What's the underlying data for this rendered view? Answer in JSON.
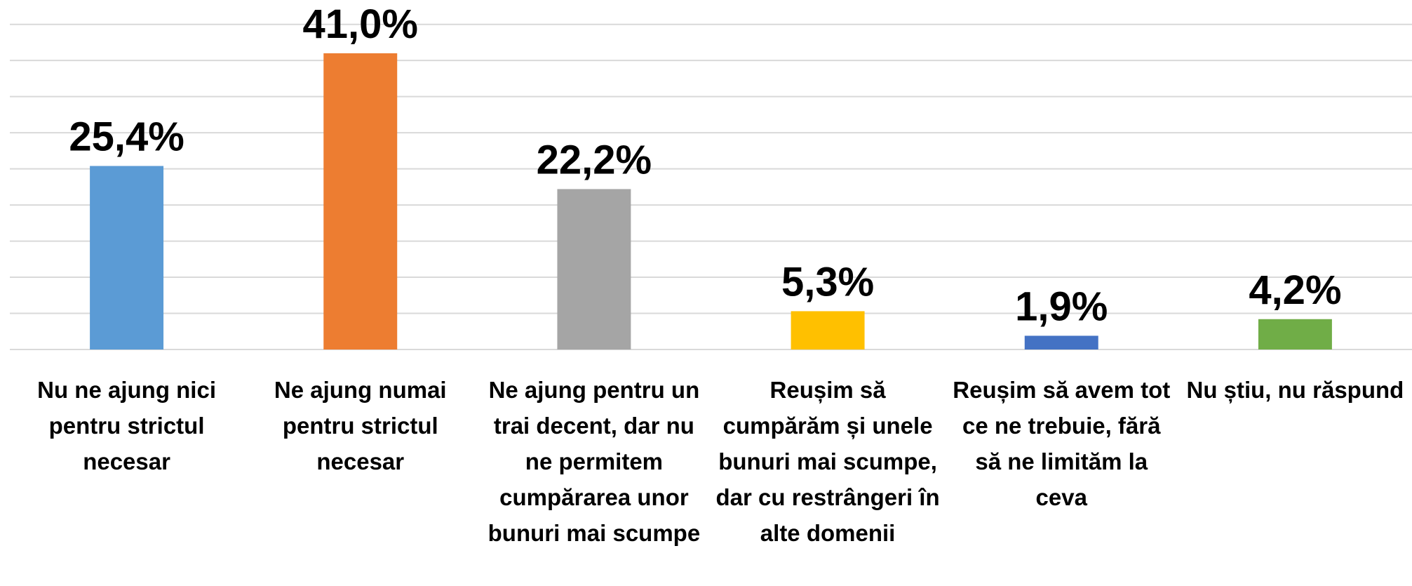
{
  "chart_data": {
    "type": "bar",
    "categories": [
      "Nu ne ajung nici pentru strictul necesar",
      "Ne ajung numai pentru strictul necesar",
      "Ne ajung pentru un trai decent, dar nu ne permitem cumpărarea unor bunuri mai scumpe",
      "Reușim să cumpărăm și unele bunuri mai scumpe, dar cu restrângeri în alte domenii",
      "Reușim să avem tot ce ne trebuie, fără să ne limităm la ceva",
      "Nu știu, nu răspund"
    ],
    "values": [
      25.4,
      41.0,
      22.2,
      5.3,
      1.9,
      4.2
    ],
    "value_labels": [
      "25,4%",
      "41,0%",
      "22,2%",
      "5,3%",
      "1,9%",
      "4,2%"
    ],
    "colors": [
      "#5b9bd5",
      "#ed7d31",
      "#a5a5a5",
      "#ffc000",
      "#4472c4",
      "#70ad47"
    ],
    "ylim": [
      0,
      45
    ],
    "yticks": [
      0,
      5,
      10,
      15,
      20,
      25,
      30,
      35,
      40,
      45
    ],
    "grid": true
  }
}
